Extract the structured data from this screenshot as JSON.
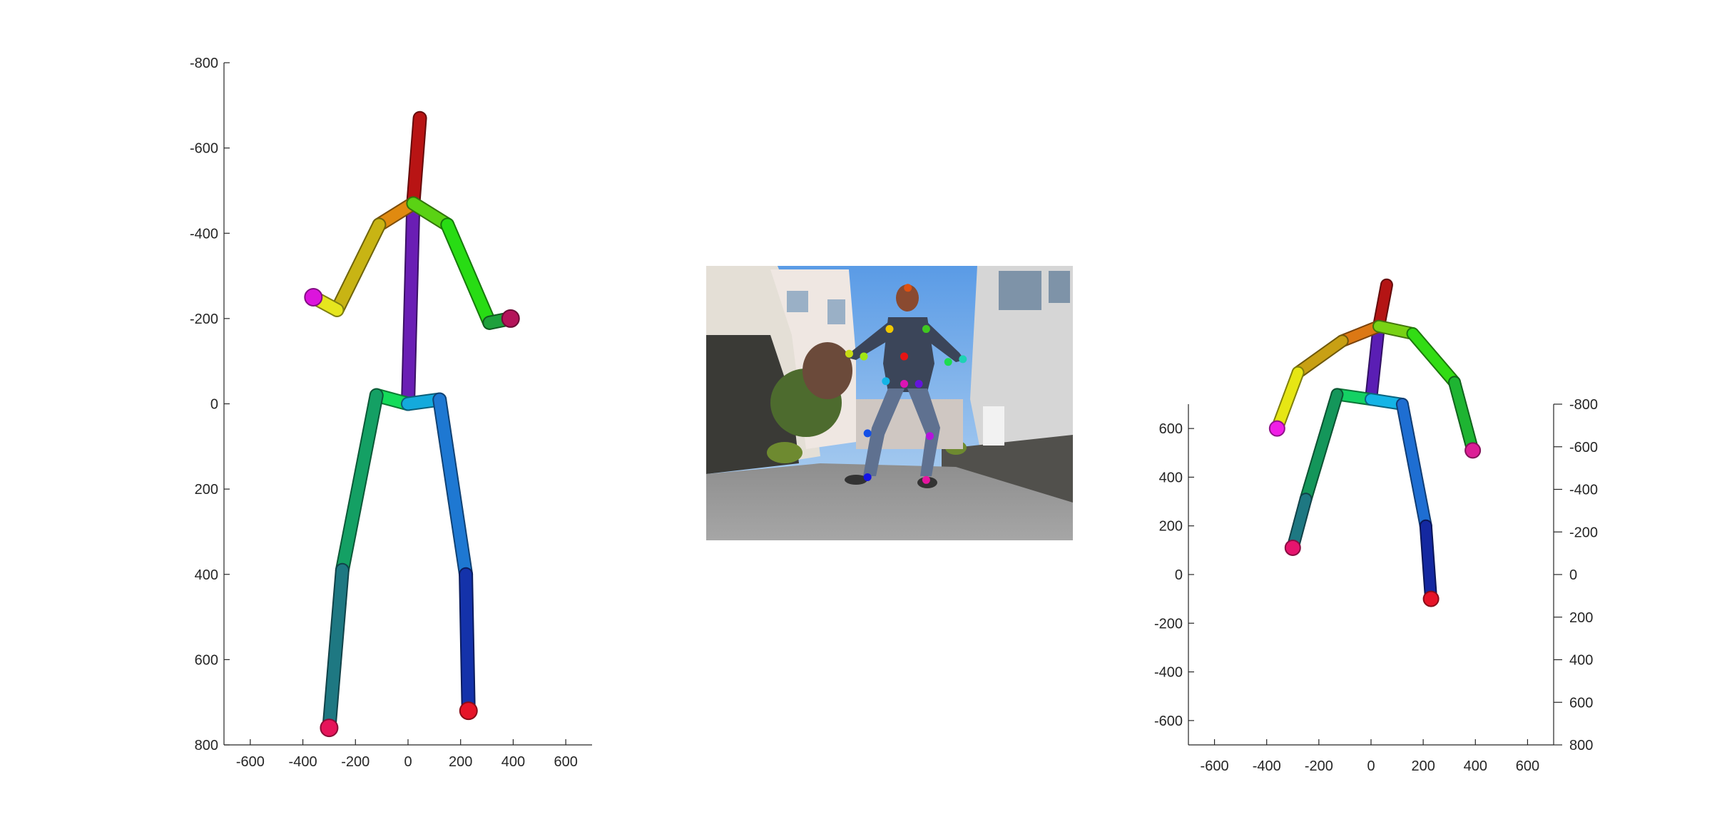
{
  "chart_data": [
    {
      "type": "scatter",
      "title": "",
      "xlabel": "",
      "ylabel": "",
      "xlim": [
        -700,
        700
      ],
      "ylim": [
        -800,
        800
      ],
      "y_reversed": true,
      "x_ticks": [
        -600,
        -400,
        -200,
        0,
        200,
        400,
        600
      ],
      "y_ticks": [
        -800,
        -600,
        -400,
        -200,
        0,
        200,
        400,
        600,
        800
      ],
      "joints": {
        "head_top": [
          45,
          -670
        ],
        "neck": [
          20,
          -470
        ],
        "l_shoulder": [
          -110,
          -420
        ],
        "l_elbow": [
          -270,
          -220
        ],
        "l_wrist": [
          -360,
          -250
        ],
        "r_shoulder": [
          150,
          -420
        ],
        "r_elbow": [
          310,
          -190
        ],
        "r_wrist": [
          390,
          -200
        ],
        "pelvis": [
          0,
          0
        ],
        "l_hip": [
          -120,
          -20
        ],
        "l_knee": [
          -250,
          390
        ],
        "l_ankle": [
          -300,
          760
        ],
        "r_hip": [
          120,
          -10
        ],
        "r_knee": [
          220,
          400
        ],
        "r_ankle": [
          230,
          720
        ]
      },
      "bones": [
        {
          "from": "neck",
          "to": "head_top",
          "color": "#b81414"
        },
        {
          "from": "pelvis",
          "to": "neck",
          "color": "#6a1eb4"
        },
        {
          "from": "neck",
          "to": "l_shoulder",
          "color": "#e08a10"
        },
        {
          "from": "l_shoulder",
          "to": "l_elbow",
          "color": "#c8b414"
        },
        {
          "from": "l_elbow",
          "to": "l_wrist",
          "color": "#e6e61e"
        },
        {
          "from": "neck",
          "to": "r_shoulder",
          "color": "#5ad214"
        },
        {
          "from": "r_shoulder",
          "to": "r_elbow",
          "color": "#28dc14"
        },
        {
          "from": "r_elbow",
          "to": "r_wrist",
          "color": "#1ea03c"
        },
        {
          "from": "pelvis",
          "to": "l_hip",
          "color": "#14dc5a"
        },
        {
          "from": "l_hip",
          "to": "l_knee",
          "color": "#14a064"
        },
        {
          "from": "l_knee",
          "to": "l_ankle",
          "color": "#1e7882"
        },
        {
          "from": "pelvis",
          "to": "r_hip",
          "color": "#14aadc"
        },
        {
          "from": "r_hip",
          "to": "r_knee",
          "color": "#1e78d2"
        },
        {
          "from": "r_knee",
          "to": "r_ankle",
          "color": "#1432aa"
        }
      ],
      "end_caps": [
        {
          "joint": "l_wrist",
          "color": "#dc14dc"
        },
        {
          "joint": "r_wrist",
          "color": "#b4145a"
        },
        {
          "joint": "l_ankle",
          "color": "#e6145a"
        },
        {
          "joint": "r_ankle",
          "color": "#e61428"
        }
      ]
    },
    {
      "type": "scatter",
      "title": "",
      "xlabel": "",
      "ylabel": "",
      "xlim": [
        -700,
        700
      ],
      "ylim": [
        -700,
        700
      ],
      "left_y_ticks": [
        -600,
        -400,
        -200,
        0,
        200,
        400,
        600
      ],
      "right_y_ticks": [
        -800,
        -600,
        -400,
        -200,
        0,
        200,
        400,
        600,
        800
      ],
      "x_ticks": [
        -600,
        -400,
        -200,
        0,
        200,
        400,
        600
      ],
      "joints": {
        "head_top": [
          60,
          1190
        ],
        "neck": [
          30,
          1020
        ],
        "l_shoulder": [
          -110,
          960
        ],
        "l_elbow": [
          -280,
          830
        ],
        "l_wrist": [
          -360,
          600
        ],
        "r_shoulder": [
          160,
          990
        ],
        "r_elbow": [
          320,
          790
        ],
        "r_wrist": [
          390,
          510
        ],
        "pelvis": [
          0,
          720
        ],
        "l_hip": [
          -130,
          740
        ],
        "l_knee": [
          -250,
          310
        ],
        "l_ankle": [
          -300,
          110
        ],
        "r_hip": [
          120,
          700
        ],
        "r_knee": [
          210,
          200
        ],
        "r_ankle": [
          230,
          -100
        ]
      },
      "bones": [
        {
          "from": "neck",
          "to": "head_top",
          "color": "#b41414"
        },
        {
          "from": "pelvis",
          "to": "neck",
          "color": "#5a1eb4"
        },
        {
          "from": "neck",
          "to": "l_shoulder",
          "color": "#dc7814"
        },
        {
          "from": "l_shoulder",
          "to": "l_elbow",
          "color": "#c8a014"
        },
        {
          "from": "l_elbow",
          "to": "l_wrist",
          "color": "#e6e614"
        },
        {
          "from": "neck",
          "to": "r_shoulder",
          "color": "#78d214"
        },
        {
          "from": "r_shoulder",
          "to": "r_elbow",
          "color": "#32dc14"
        },
        {
          "from": "r_elbow",
          "to": "r_wrist",
          "color": "#1eb432"
        },
        {
          "from": "pelvis",
          "to": "l_hip",
          "color": "#14d264"
        },
        {
          "from": "l_hip",
          "to": "l_knee",
          "color": "#14965a"
        },
        {
          "from": "l_knee",
          "to": "l_ankle",
          "color": "#1e7882"
        },
        {
          "from": "pelvis",
          "to": "r_hip",
          "color": "#14b4e6"
        },
        {
          "from": "r_hip",
          "to": "r_knee",
          "color": "#1e6ed2"
        },
        {
          "from": "r_knee",
          "to": "r_ankle",
          "color": "#1428a0"
        }
      ],
      "end_caps": [
        {
          "joint": "l_wrist",
          "color": "#f01ee6"
        },
        {
          "joint": "r_wrist",
          "color": "#dc1e96"
        },
        {
          "joint": "l_ankle",
          "color": "#e6146e"
        },
        {
          "joint": "r_ankle",
          "color": "#e61428"
        }
      ]
    }
  ],
  "photo": {
    "keypoints": [
      {
        "u": 0.55,
        "v": 0.08,
        "color": "#e05010"
      },
      {
        "u": 0.5,
        "v": 0.23,
        "color": "#f0c800"
      },
      {
        "u": 0.6,
        "v": 0.23,
        "color": "#40c820"
      },
      {
        "u": 0.39,
        "v": 0.32,
        "color": "#c8dc14"
      },
      {
        "u": 0.43,
        "v": 0.33,
        "color": "#a0e614"
      },
      {
        "u": 0.66,
        "v": 0.35,
        "color": "#1edc50"
      },
      {
        "u": 0.7,
        "v": 0.34,
        "color": "#1ed2b4"
      },
      {
        "u": 0.54,
        "v": 0.33,
        "color": "#e61414"
      },
      {
        "u": 0.49,
        "v": 0.42,
        "color": "#14b4e6"
      },
      {
        "u": 0.54,
        "v": 0.43,
        "color": "#dc14b4"
      },
      {
        "u": 0.58,
        "v": 0.43,
        "color": "#6414dc"
      },
      {
        "u": 0.44,
        "v": 0.61,
        "color": "#1450e6"
      },
      {
        "u": 0.61,
        "v": 0.62,
        "color": "#b414dc"
      },
      {
        "u": 0.44,
        "v": 0.77,
        "color": "#1414e6"
      },
      {
        "u": 0.6,
        "v": 0.78,
        "color": "#e614a0"
      }
    ]
  }
}
